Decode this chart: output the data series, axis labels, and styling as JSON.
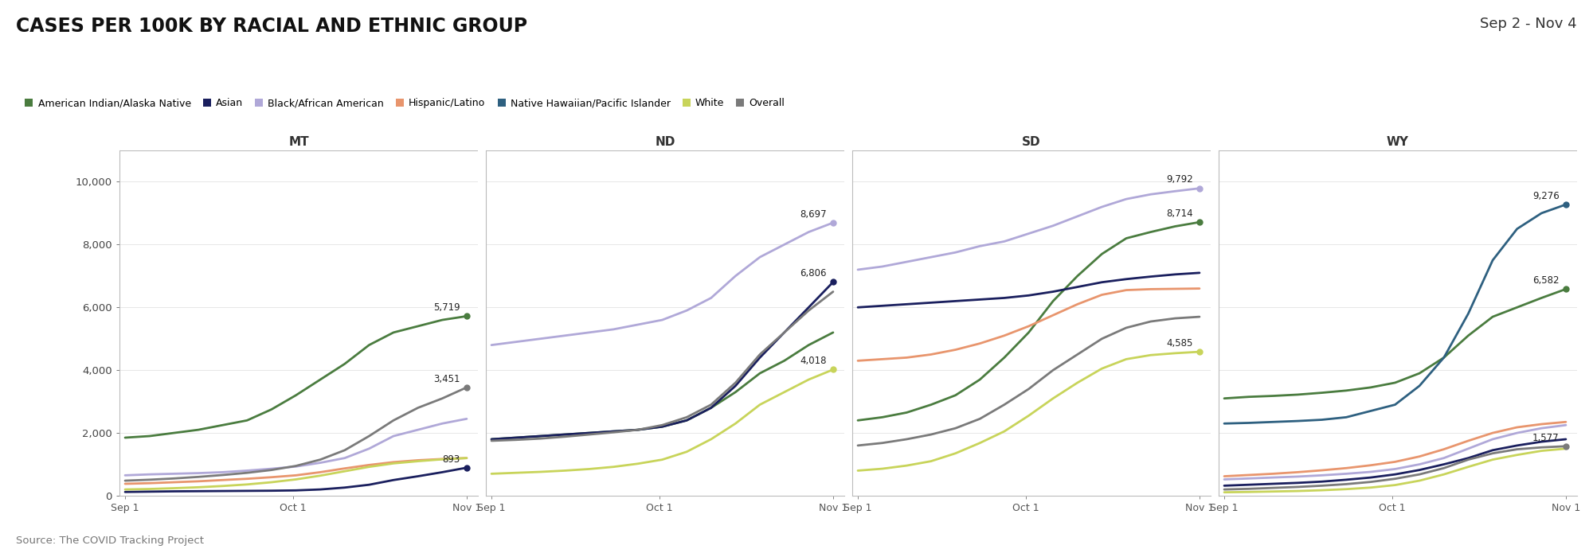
{
  "title": "CASES PER 100K BY RACIAL AND ETHNIC GROUP",
  "date_range": "Sep 2 - Nov 4",
  "source": "Source: The COVID Tracking Project",
  "states": [
    "MT",
    "ND",
    "SD",
    "WY"
  ],
  "groups": [
    "American Indian/Alaska Native",
    "Asian",
    "Black/African American",
    "Hispanic/Latino",
    "Native Hawaiian/Pacific Islander",
    "White",
    "Overall"
  ],
  "colors": {
    "American Indian/Alaska Native": "#4a7c3f",
    "Asian": "#1a1f5e",
    "Black/African American": "#b0a8d8",
    "Hispanic/Latino": "#e8956d",
    "Native Hawaiian/Pacific Islander": "#2e6080",
    "White": "#c8d45a",
    "Overall": "#7a7a7a"
  },
  "ylim": [
    0,
    11000
  ],
  "yticks": [
    0,
    2000,
    4000,
    6000,
    8000,
    10000
  ],
  "data": {
    "MT": {
      "American Indian/Alaska Native": [
        1850,
        1900,
        2000,
        2100,
        2250,
        2400,
        2750,
        3200,
        3700,
        4200,
        4800,
        5200,
        5400,
        5600,
        5719
      ],
      "Asian": [
        120,
        130,
        140,
        145,
        150,
        155,
        160,
        170,
        200,
        260,
        350,
        500,
        620,
        750,
        893
      ],
      "Black/African American": [
        650,
        680,
        700,
        720,
        750,
        800,
        860,
        930,
        1050,
        1200,
        1500,
        1900,
        2100,
        2300,
        2450
      ],
      "Hispanic/Latino": [
        380,
        400,
        430,
        460,
        500,
        540,
        590,
        650,
        750,
        870,
        980,
        1070,
        1130,
        1170,
        1200
      ],
      "Native Hawaiian/Pacific Islander": [
        null,
        null,
        null,
        null,
        null,
        null,
        null,
        null,
        null,
        null,
        null,
        null,
        null,
        null,
        null
      ],
      "White": [
        200,
        215,
        240,
        270,
        310,
        360,
        430,
        520,
        640,
        780,
        920,
        1030,
        1100,
        1160,
        1200
      ],
      "Overall": [
        480,
        510,
        550,
        600,
        660,
        730,
        820,
        950,
        1150,
        1450,
        1900,
        2400,
        2800,
        3100,
        3451
      ]
    },
    "ND": {
      "American Indian/Alaska Native": [
        1800,
        1850,
        1900,
        1950,
        2000,
        2050,
        2100,
        2200,
        2400,
        2800,
        3300,
        3900,
        4300,
        4800,
        5200
      ],
      "Asian": [
        1800,
        1850,
        1900,
        1950,
        2000,
        2050,
        2100,
        2200,
        2400,
        2800,
        3500,
        4400,
        5200,
        6000,
        6806
      ],
      "Black/African American": [
        4800,
        4900,
        5000,
        5100,
        5200,
        5300,
        5450,
        5600,
        5900,
        6300,
        7000,
        7600,
        8000,
        8400,
        8697
      ],
      "Hispanic/Latino": [
        null,
        null,
        null,
        null,
        null,
        null,
        null,
        null,
        null,
        null,
        null,
        null,
        null,
        null,
        null
      ],
      "Native Hawaiian/Pacific Islander": [
        null,
        null,
        null,
        null,
        null,
        null,
        null,
        null,
        null,
        null,
        null,
        null,
        null,
        null,
        null
      ],
      "White": [
        700,
        730,
        760,
        800,
        850,
        920,
        1020,
        1150,
        1400,
        1800,
        2300,
        2900,
        3300,
        3700,
        4018
      ],
      "Overall": [
        1750,
        1780,
        1820,
        1880,
        1950,
        2020,
        2100,
        2250,
        2500,
        2900,
        3600,
        4500,
        5200,
        5900,
        6500
      ]
    },
    "SD": {
      "American Indian/Alaska Native": [
        2400,
        2500,
        2650,
        2900,
        3200,
        3700,
        4400,
        5200,
        6200,
        7000,
        7700,
        8200,
        8400,
        8580,
        8714
      ],
      "Asian": [
        6000,
        6050,
        6100,
        6150,
        6200,
        6250,
        6300,
        6380,
        6500,
        6650,
        6800,
        6900,
        6980,
        7050,
        7100
      ],
      "Black/African American": [
        7200,
        7300,
        7450,
        7600,
        7750,
        7950,
        8100,
        8350,
        8600,
        8900,
        9200,
        9450,
        9600,
        9700,
        9792
      ],
      "Hispanic/Latino": [
        4300,
        4350,
        4400,
        4500,
        4650,
        4850,
        5100,
        5400,
        5750,
        6100,
        6400,
        6550,
        6580,
        6590,
        6600
      ],
      "Native Hawaiian/Pacific Islander": [
        null,
        null,
        null,
        null,
        null,
        null,
        null,
        null,
        null,
        null,
        null,
        null,
        null,
        null,
        null
      ],
      "White": [
        800,
        860,
        960,
        1100,
        1350,
        1680,
        2050,
        2550,
        3100,
        3600,
        4050,
        4350,
        4480,
        4540,
        4585
      ],
      "Overall": [
        1600,
        1680,
        1800,
        1950,
        2150,
        2450,
        2900,
        3400,
        4000,
        4500,
        5000,
        5350,
        5550,
        5650,
        5700
      ]
    },
    "WY": {
      "American Indian/Alaska Native": [
        3100,
        3150,
        3180,
        3220,
        3280,
        3350,
        3450,
        3600,
        3900,
        4400,
        5100,
        5700,
        6000,
        6300,
        6582
      ],
      "Asian": [
        320,
        350,
        380,
        410,
        450,
        510,
        580,
        680,
        820,
        1000,
        1200,
        1450,
        1600,
        1720,
        1800
      ],
      "Black/African American": [
        520,
        550,
        580,
        610,
        650,
        700,
        760,
        850,
        1000,
        1200,
        1500,
        1800,
        2000,
        2150,
        2250
      ],
      "Hispanic/Latino": [
        620,
        660,
        700,
        750,
        810,
        880,
        970,
        1080,
        1250,
        1480,
        1750,
        2000,
        2180,
        2280,
        2350
      ],
      "Native Hawaiian/Pacific Islander": [
        2300,
        2320,
        2350,
        2380,
        2420,
        2500,
        2700,
        2900,
        3500,
        4400,
        5800,
        7500,
        8500,
        9000,
        9276
      ],
      "White": [
        110,
        120,
        135,
        150,
        175,
        210,
        260,
        340,
        480,
        680,
        920,
        1150,
        1300,
        1430,
        1500
      ],
      "Overall": [
        200,
        220,
        250,
        280,
        320,
        370,
        440,
        540,
        680,
        880,
        1150,
        1350,
        1480,
        1540,
        1577
      ]
    }
  },
  "annotations": {
    "MT": {
      "American Indian/Alaska Native": {
        "value": 5719,
        "ha": "right"
      },
      "Overall": {
        "value": 3451,
        "ha": "right"
      },
      "Asian": {
        "value": 893,
        "ha": "right"
      }
    },
    "ND": {
      "Black/African American": {
        "value": 8697,
        "ha": "right"
      },
      "Asian": {
        "value": 6806,
        "ha": "right"
      },
      "White": {
        "value": 4018,
        "ha": "right"
      }
    },
    "SD": {
      "Black/African American": {
        "value": 9792,
        "ha": "right"
      },
      "American Indian/Alaska Native": {
        "value": 8714,
        "ha": "right"
      },
      "White": {
        "value": 4585,
        "ha": "right"
      }
    },
    "WY": {
      "Native Hawaiian/Pacific Islander": {
        "value": 9276,
        "ha": "right"
      },
      "American Indian/Alaska Native": {
        "value": 6582,
        "ha": "right"
      },
      "Overall": {
        "value": 1577,
        "ha": "right"
      }
    }
  },
  "background_color": "#ffffff",
  "line_width": 2.0,
  "n_points": 15
}
